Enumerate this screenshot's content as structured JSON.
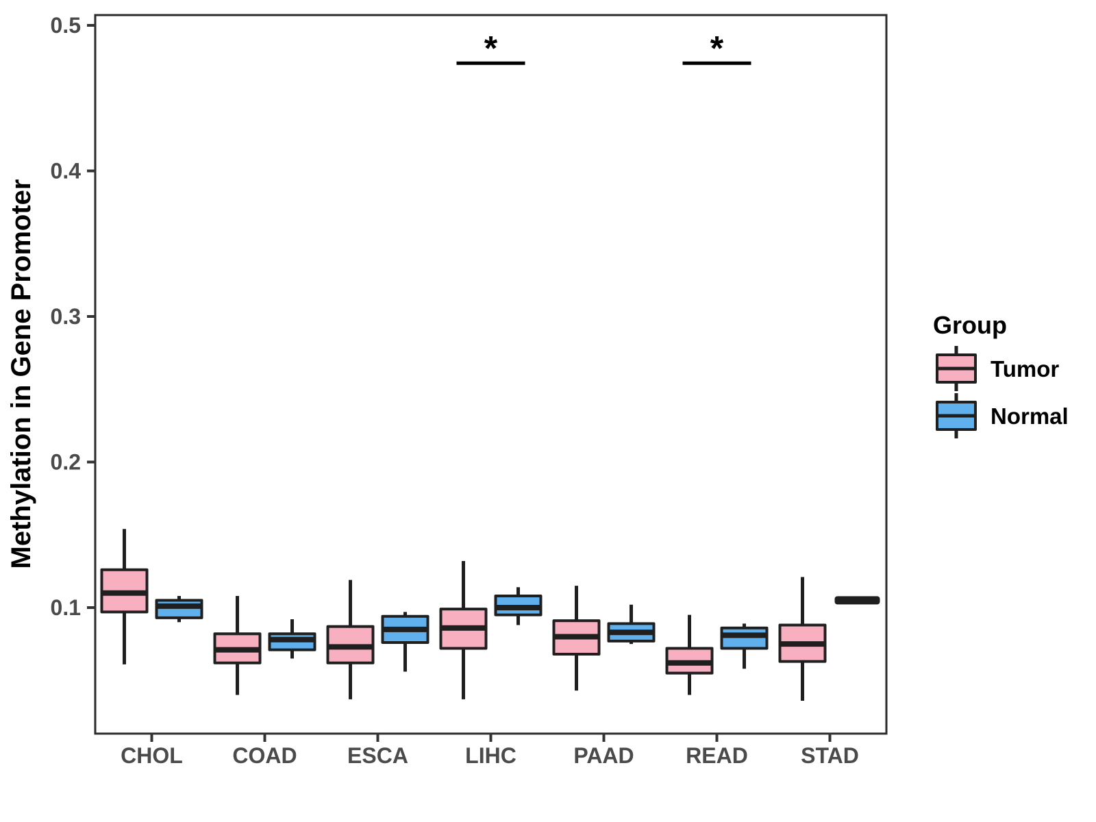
{
  "chart_data": {
    "type": "grouped_boxplot",
    "title": "",
    "xlabel": "",
    "ylabel": "Methylation in Gene Promoter",
    "categories": [
      "CHOL",
      "COAD",
      "ESCA",
      "LIHC",
      "PAAD",
      "READ",
      "STAD"
    ],
    "y_ticks": [
      0.1,
      0.2,
      0.3,
      0.4,
      0.5
    ],
    "y_tick_labels": [
      "0.1",
      "0.2",
      "0.3",
      "0.4",
      "0.5"
    ],
    "ylim": [
      0.013,
      0.507
    ],
    "grid": false,
    "legend": {
      "title": "Group",
      "position": "right",
      "entries": [
        {
          "label": "Tumor",
          "color": "#F8AFC0"
        },
        {
          "label": "Normal",
          "color": "#5FB0ED"
        }
      ]
    },
    "series": [
      {
        "name": "Tumor",
        "color": "#F8AFC0",
        "boxes": [
          {
            "category": "CHOL",
            "min": 0.061,
            "q1": 0.097,
            "median": 0.11,
            "q3": 0.126,
            "max": 0.154
          },
          {
            "category": "COAD",
            "min": 0.04,
            "q1": 0.062,
            "median": 0.071,
            "q3": 0.082,
            "max": 0.108
          },
          {
            "category": "ESCA",
            "min": 0.037,
            "q1": 0.062,
            "median": 0.073,
            "q3": 0.087,
            "max": 0.119
          },
          {
            "category": "LIHC",
            "min": 0.037,
            "q1": 0.072,
            "median": 0.086,
            "q3": 0.099,
            "max": 0.132
          },
          {
            "category": "PAAD",
            "min": 0.043,
            "q1": 0.068,
            "median": 0.08,
            "q3": 0.091,
            "max": 0.115
          },
          {
            "category": "READ",
            "min": 0.04,
            "q1": 0.055,
            "median": 0.062,
            "q3": 0.072,
            "max": 0.095
          },
          {
            "category": "STAD",
            "min": 0.036,
            "q1": 0.063,
            "median": 0.075,
            "q3": 0.088,
            "max": 0.121
          }
        ]
      },
      {
        "name": "Normal",
        "color": "#5FB0ED",
        "boxes": [
          {
            "category": "CHOL",
            "min": 0.09,
            "q1": 0.093,
            "median": 0.101,
            "q3": 0.105,
            "max": 0.108
          },
          {
            "category": "COAD",
            "min": 0.065,
            "q1": 0.071,
            "median": 0.078,
            "q3": 0.082,
            "max": 0.092
          },
          {
            "category": "ESCA",
            "min": 0.056,
            "q1": 0.076,
            "median": 0.085,
            "q3": 0.094,
            "max": 0.097
          },
          {
            "category": "LIHC",
            "min": 0.088,
            "q1": 0.095,
            "median": 0.1,
            "q3": 0.108,
            "max": 0.114
          },
          {
            "category": "PAAD",
            "min": 0.075,
            "q1": 0.077,
            "median": 0.083,
            "q3": 0.089,
            "max": 0.102
          },
          {
            "category": "READ",
            "min": 0.058,
            "q1": 0.072,
            "median": 0.081,
            "q3": 0.086,
            "max": 0.089
          },
          {
            "category": "STAD",
            "min": 0.105,
            "q1": 0.105,
            "median": 0.105,
            "q3": 0.105,
            "max": 0.105
          }
        ]
      }
    ],
    "annotations": [
      {
        "category": "LIHC",
        "label": "*",
        "bar_y": 0.474
      },
      {
        "category": "READ",
        "label": "*",
        "bar_y": 0.474
      }
    ],
    "colors": {
      "box_stroke": "#1F1F1F",
      "axis_text": "#4A4A4A",
      "tick_mark": "#333333",
      "panel_border": "#2B2B2B",
      "annotation": "#000000"
    }
  }
}
